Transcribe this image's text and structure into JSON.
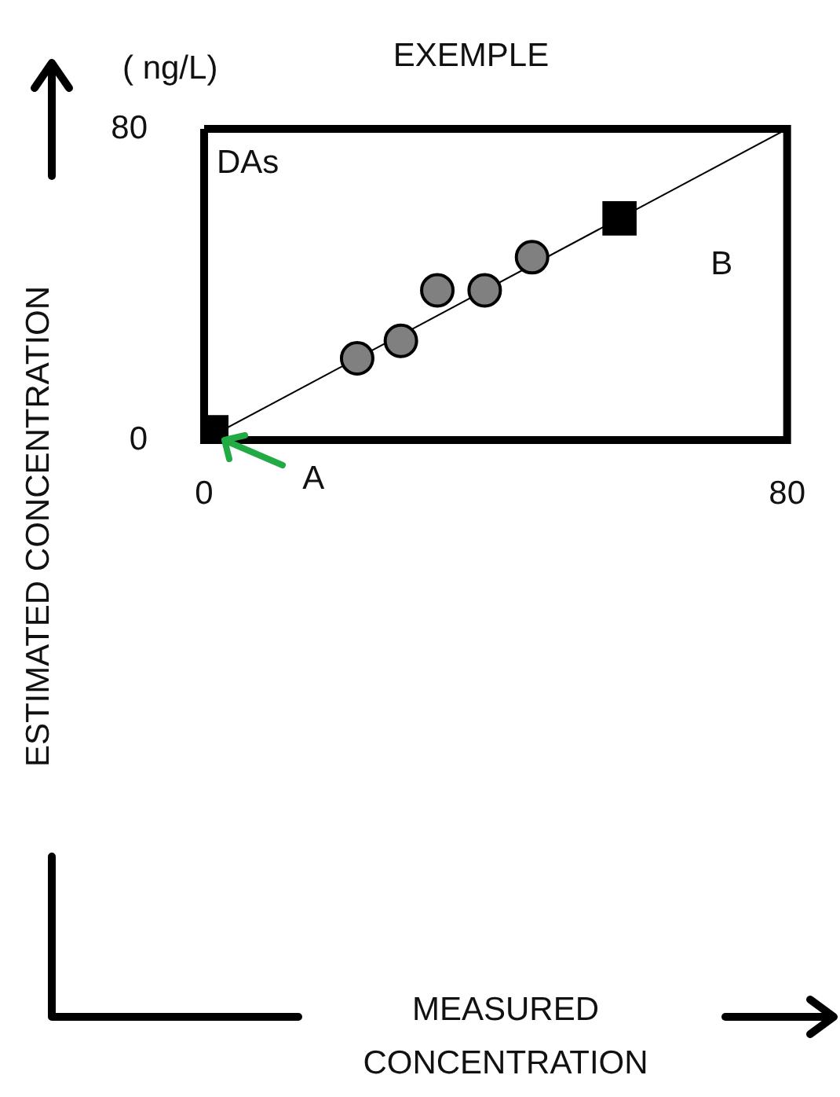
{
  "chart_data": {
    "type": "scatter",
    "title": "EXEMPLE",
    "ylabel": "ESTIMATED CONCENTRATION",
    "xlim": [
      0,
      80
    ],
    "ylim": [
      0,
      80
    ],
    "xticks": [
      0,
      80
    ],
    "yticks": [
      0,
      80
    ],
    "legend": false,
    "annotations": [
      "( ng/L)",
      "DAs",
      "MEASURED CONCENTRATION",
      {
        "text": "A",
        "x": 1,
        "y": 2
      },
      {
        "text": "B",
        "x": 57,
        "y": 57
      }
    ],
    "series": [
      {
        "type": "line",
        "color": "#000000",
        "x": [
          0,
          80
        ],
        "values": [
          0,
          80
        ],
        "marker": "none"
      },
      {
        "color": "#808080",
        "x": [
          21,
          27,
          32,
          38.5,
          45
        ],
        "values": [
          21,
          25.5,
          38.5,
          38.5,
          47
        ],
        "marker": "circle"
      },
      {
        "color": "#000000",
        "x": [
          1,
          57
        ],
        "values": [
          2,
          57
        ],
        "marker": "square"
      }
    ]
  }
}
